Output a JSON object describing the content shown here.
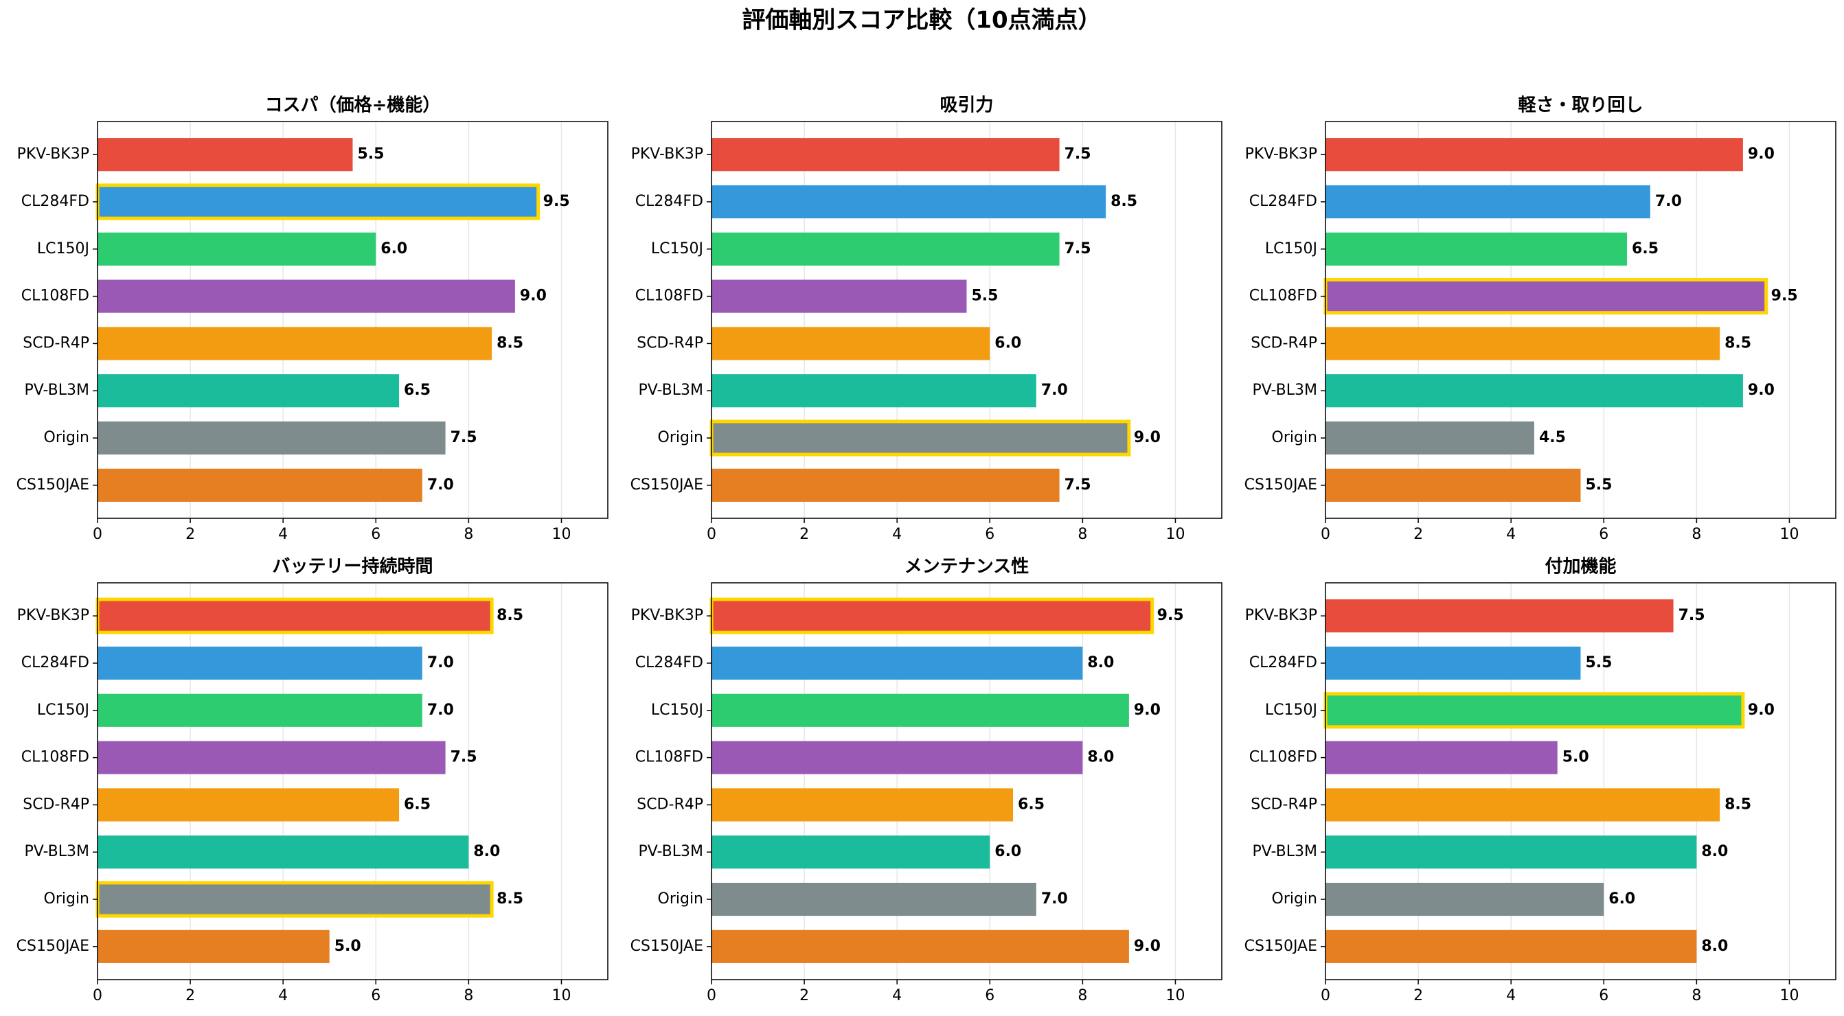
{
  "title": "評価軸別スコア比較（10点満点）",
  "chart_data": [
    {
      "type": "barh",
      "title": "コスパ（価格÷機能）",
      "categories": [
        "PKV-BK3P",
        "CL284FD",
        "LC150J",
        "CL108FD",
        "SCD-R4P",
        "PV-BL3M",
        "Origin",
        "CS150JAE"
      ],
      "values": [
        5.5,
        9.5,
        6.0,
        9.0,
        8.5,
        6.5,
        7.5,
        7.0
      ],
      "value_labels": [
        "5.5",
        "9.5",
        "6.0",
        "9.0",
        "8.5",
        "6.5",
        "7.5",
        "7.0"
      ],
      "colors": [
        "#e74c3c",
        "#3498db",
        "#2ecc71",
        "#9b59b6",
        "#f39c12",
        "#1abc9c",
        "#7f8c8d",
        "#e67e22"
      ],
      "highlight": [
        1
      ],
      "highlight_color": "#ffd700",
      "xlim": [
        0,
        11
      ],
      "xticks": [
        0,
        2,
        4,
        6,
        8,
        10
      ],
      "grid": true
    },
    {
      "type": "barh",
      "title": "吸引力",
      "categories": [
        "PKV-BK3P",
        "CL284FD",
        "LC150J",
        "CL108FD",
        "SCD-R4P",
        "PV-BL3M",
        "Origin",
        "CS150JAE"
      ],
      "values": [
        7.5,
        8.5,
        7.5,
        5.5,
        6.0,
        7.0,
        9.0,
        7.5
      ],
      "value_labels": [
        "7.5",
        "8.5",
        "7.5",
        "5.5",
        "6.0",
        "7.0",
        "9.0",
        "7.5"
      ],
      "colors": [
        "#e74c3c",
        "#3498db",
        "#2ecc71",
        "#9b59b6",
        "#f39c12",
        "#1abc9c",
        "#7f8c8d",
        "#e67e22"
      ],
      "highlight": [
        6
      ],
      "highlight_color": "#ffd700",
      "xlim": [
        0,
        11
      ],
      "xticks": [
        0,
        2,
        4,
        6,
        8,
        10
      ],
      "grid": true
    },
    {
      "type": "barh",
      "title": "軽さ・取り回し",
      "categories": [
        "PKV-BK3P",
        "CL284FD",
        "LC150J",
        "CL108FD",
        "SCD-R4P",
        "PV-BL3M",
        "Origin",
        "CS150JAE"
      ],
      "values": [
        9.0,
        7.0,
        6.5,
        9.5,
        8.5,
        9.0,
        4.5,
        5.5
      ],
      "value_labels": [
        "9.0",
        "7.0",
        "6.5",
        "9.5",
        "8.5",
        "9.0",
        "4.5",
        "5.5"
      ],
      "colors": [
        "#e74c3c",
        "#3498db",
        "#2ecc71",
        "#9b59b6",
        "#f39c12",
        "#1abc9c",
        "#7f8c8d",
        "#e67e22"
      ],
      "highlight": [
        3
      ],
      "highlight_color": "#ffd700",
      "xlim": [
        0,
        11
      ],
      "xticks": [
        0,
        2,
        4,
        6,
        8,
        10
      ],
      "grid": true
    },
    {
      "type": "barh",
      "title": "バッテリー持続時間",
      "categories": [
        "PKV-BK3P",
        "CL284FD",
        "LC150J",
        "CL108FD",
        "SCD-R4P",
        "PV-BL3M",
        "Origin",
        "CS150JAE"
      ],
      "values": [
        8.5,
        7.0,
        7.0,
        7.5,
        6.5,
        8.0,
        8.5,
        5.0
      ],
      "value_labels": [
        "8.5",
        "7.0",
        "7.0",
        "7.5",
        "6.5",
        "8.0",
        "8.5",
        "5.0"
      ],
      "colors": [
        "#e74c3c",
        "#3498db",
        "#2ecc71",
        "#9b59b6",
        "#f39c12",
        "#1abc9c",
        "#7f8c8d",
        "#e67e22"
      ],
      "highlight": [
        0,
        6
      ],
      "highlight_color": "#ffd700",
      "xlim": [
        0,
        11
      ],
      "xticks": [
        0,
        2,
        4,
        6,
        8,
        10
      ],
      "grid": true
    },
    {
      "type": "barh",
      "title": "メンテナンス性",
      "categories": [
        "PKV-BK3P",
        "CL284FD",
        "LC150J",
        "CL108FD",
        "SCD-R4P",
        "PV-BL3M",
        "Origin",
        "CS150JAE"
      ],
      "values": [
        9.5,
        8.0,
        9.0,
        8.0,
        6.5,
        6.0,
        7.0,
        9.0
      ],
      "value_labels": [
        "9.5",
        "8.0",
        "9.0",
        "8.0",
        "6.5",
        "6.0",
        "7.0",
        "9.0"
      ],
      "colors": [
        "#e74c3c",
        "#3498db",
        "#2ecc71",
        "#9b59b6",
        "#f39c12",
        "#1abc9c",
        "#7f8c8d",
        "#e67e22"
      ],
      "highlight": [
        0
      ],
      "highlight_color": "#ffd700",
      "xlim": [
        0,
        11
      ],
      "xticks": [
        0,
        2,
        4,
        6,
        8,
        10
      ],
      "grid": true
    },
    {
      "type": "barh",
      "title": "付加機能",
      "categories": [
        "PKV-BK3P",
        "CL284FD",
        "LC150J",
        "CL108FD",
        "SCD-R4P",
        "PV-BL3M",
        "Origin",
        "CS150JAE"
      ],
      "values": [
        7.5,
        5.5,
        9.0,
        5.0,
        8.5,
        8.0,
        6.0,
        8.0
      ],
      "value_labels": [
        "7.5",
        "5.5",
        "9.0",
        "5.0",
        "8.5",
        "8.0",
        "6.0",
        "8.0"
      ],
      "colors": [
        "#e74c3c",
        "#3498db",
        "#2ecc71",
        "#9b59b6",
        "#f39c12",
        "#1abc9c",
        "#7f8c8d",
        "#e67e22"
      ],
      "highlight": [
        2
      ],
      "highlight_color": "#ffd700",
      "xlim": [
        0,
        11
      ],
      "xticks": [
        0,
        2,
        4,
        6,
        8,
        10
      ],
      "grid": true
    }
  ]
}
